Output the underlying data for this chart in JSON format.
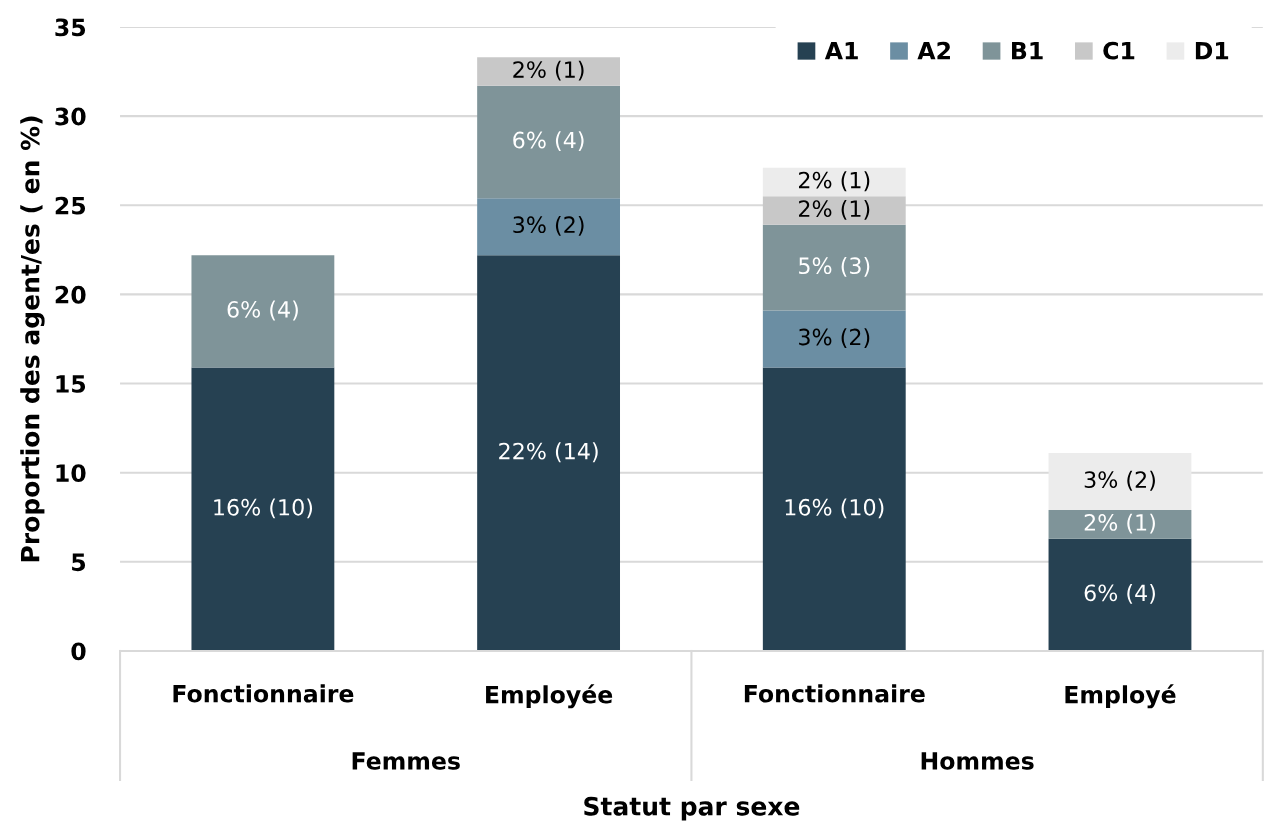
{
  "chart_data": {
    "type": "bar",
    "stacked": true,
    "categories": [
      "Fonctionnaire",
      "Employée",
      "Fonctionnaire",
      "Employé"
    ],
    "annotations": [
      "Femmes",
      "Hommes"
    ],
    "xlabel": "Statut par sexe",
    "ylabel": "Proportion des agent/es ( en %)",
    "ylim": [
      0,
      35
    ],
    "yticks": [
      0,
      5,
      10,
      15,
      20,
      25,
      30,
      35
    ],
    "grid": "y",
    "legend": "top right",
    "series": [
      {
        "name": "A1",
        "color": "#264152",
        "values": [
          15.9,
          22.2,
          15.9,
          6.3
        ],
        "value_labels": [
          "16% (10)",
          "22% (14)",
          "16% (10)",
          "6% (4)"
        ]
      },
      {
        "name": "A2",
        "color": "#6b8ea3",
        "values": [
          null,
          3.2,
          3.2,
          null
        ],
        "value_labels": [
          null,
          "3% (2)",
          "3% (2)",
          null
        ]
      },
      {
        "name": "B1",
        "color": "#7f9499",
        "values": [
          6.3,
          6.3,
          4.8,
          1.6
        ],
        "value_labels": [
          "6% (4)",
          "6% (4)",
          "5% (3)",
          "2% (1)"
        ]
      },
      {
        "name": "C1",
        "color": "#c8c8c8",
        "values": [
          null,
          1.6,
          1.6,
          null
        ],
        "value_labels": [
          null,
          "2% (1)",
          "2% (1)",
          null
        ]
      },
      {
        "name": "D1",
        "color": "#ececec",
        "values": [
          null,
          null,
          1.6,
          3.2
        ],
        "value_labels": [
          null,
          null,
          "2% (1)",
          "3% (2)"
        ]
      }
    ]
  }
}
